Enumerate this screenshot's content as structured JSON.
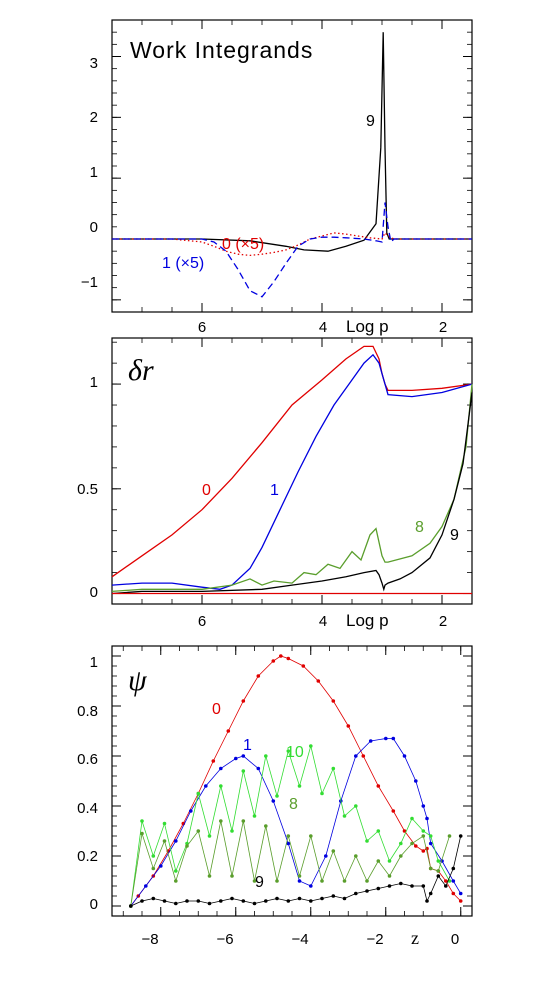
{
  "chart_data": [
    {
      "type": "line",
      "title": "Work Integrands",
      "xlabel": "Log p",
      "ylabel": "",
      "xlim": [
        7.5,
        1.5
      ],
      "ylim": [
        -1.2,
        3.6
      ],
      "x_ticks": [
        6,
        4,
        2
      ],
      "y_ticks": [
        -1,
        0,
        1,
        2,
        3
      ],
      "series": [
        {
          "name": "9",
          "color": "#000000",
          "style": "solid",
          "x": [
            7.5,
            6.0,
            5.2,
            4.6,
            4.3,
            3.9,
            3.6,
            3.3,
            3.1,
            3.02,
            2.98,
            2.95,
            2.92,
            2.88,
            2.8,
            2.5,
            2.0,
            1.5
          ],
          "y": [
            0,
            0,
            -0.03,
            -0.12,
            -0.18,
            -0.2,
            -0.12,
            -0.02,
            0.25,
            1.5,
            3.4,
            1.5,
            0.1,
            0,
            0,
            0,
            0,
            0
          ]
        },
        {
          "name": "0 (×5)",
          "color": "#e00000",
          "style": "dotted",
          "x": [
            7.5,
            6.5,
            6.0,
            5.8,
            5.6,
            5.4,
            5.2,
            5.0,
            4.8,
            4.6,
            4.4,
            4.2,
            4.0,
            3.8,
            3.6,
            3.4,
            3.2,
            3.0,
            2.95,
            2.9,
            2.8,
            2.5,
            1.5
          ],
          "y": [
            0,
            0,
            -0.05,
            -0.12,
            -0.2,
            -0.25,
            -0.27,
            -0.25,
            -0.22,
            -0.18,
            -0.1,
            0,
            0.05,
            0.1,
            0.08,
            0.05,
            0.02,
            0,
            0.1,
            0.05,
            0,
            0,
            0
          ]
        },
        {
          "name": "1 (×5)",
          "color": "#0000e0",
          "style": "dashed",
          "x": [
            7.5,
            6.0,
            5.8,
            5.6,
            5.4,
            5.2,
            5.0,
            4.8,
            4.6,
            4.4,
            4.2,
            4.0,
            3.8,
            3.6,
            3.3,
            3.1,
            3.0,
            2.95,
            2.9,
            2.85,
            2.8,
            2.5,
            1.5
          ],
          "y": [
            0,
            0,
            -0.05,
            -0.2,
            -0.5,
            -0.85,
            -0.95,
            -0.7,
            -0.4,
            -0.12,
            0,
            0.03,
            0.03,
            0.02,
            0,
            -0.03,
            -0.05,
            0.6,
            0.2,
            -0.05,
            0,
            0,
            0
          ]
        }
      ]
    },
    {
      "type": "line",
      "title": "δr",
      "xlabel": "Log p",
      "ylabel": "",
      "xlim": [
        7.5,
        1.5
      ],
      "ylim": [
        -0.05,
        1.22
      ],
      "x_ticks": [
        6,
        4,
        2
      ],
      "y_ticks": [
        0,
        0.5,
        1
      ],
      "series": [
        {
          "name": "0",
          "color": "#e00000",
          "style": "solid",
          "x": [
            7.5,
            7.0,
            6.5,
            6.0,
            5.5,
            5.0,
            4.5,
            4.0,
            3.6,
            3.3,
            3.15,
            3.05,
            3.0,
            2.95,
            2.9,
            2.5,
            2.0,
            1.5
          ],
          "y": [
            0.08,
            0.18,
            0.28,
            0.4,
            0.55,
            0.72,
            0.9,
            1.02,
            1.12,
            1.18,
            1.18,
            1.12,
            1.05,
            1.0,
            0.97,
            0.97,
            0.98,
            1.0
          ]
        },
        {
          "name": "1",
          "color": "#0000e0",
          "style": "solid",
          "x": [
            7.5,
            7.0,
            6.5,
            6.0,
            5.7,
            5.5,
            5.2,
            5.0,
            4.7,
            4.4,
            4.1,
            3.8,
            3.5,
            3.3,
            3.15,
            3.05,
            2.95,
            2.9,
            2.5,
            2.0,
            1.5
          ],
          "y": [
            0.04,
            0.05,
            0.05,
            0.03,
            0.02,
            0.04,
            0.12,
            0.22,
            0.4,
            0.58,
            0.75,
            0.9,
            1.02,
            1.1,
            1.14,
            1.1,
            1.0,
            0.95,
            0.94,
            0.96,
            1.0
          ]
        },
        {
          "name": "8",
          "color": "#5a9e2c",
          "style": "solid",
          "x": [
            7.5,
            7.0,
            6.5,
            6.0,
            5.5,
            5.2,
            5.0,
            4.8,
            4.5,
            4.3,
            4.1,
            3.9,
            3.7,
            3.5,
            3.35,
            3.2,
            3.1,
            3.0,
            2.95,
            2.9,
            2.5,
            2.2,
            2.0,
            1.8,
            1.6,
            1.5
          ],
          "y": [
            0.01,
            0.02,
            0.02,
            0.02,
            0.04,
            0.07,
            0.04,
            0.06,
            0.05,
            0.1,
            0.09,
            0.14,
            0.12,
            0.2,
            0.16,
            0.28,
            0.31,
            0.18,
            0.15,
            0.15,
            0.18,
            0.24,
            0.32,
            0.45,
            0.7,
            1.0
          ]
        },
        {
          "name": "9",
          "color": "#000000",
          "style": "solid",
          "x": [
            7.5,
            7.0,
            6.0,
            5.0,
            4.5,
            4.0,
            3.6,
            3.3,
            3.1,
            3.05,
            3.0,
            2.97,
            2.95,
            2.9,
            2.7,
            2.5,
            2.2,
            2.0,
            1.8,
            1.65,
            1.5
          ],
          "y": [
            0.0,
            0.01,
            0.01,
            0.02,
            0.04,
            0.06,
            0.08,
            0.1,
            0.11,
            0.09,
            0.05,
            0.02,
            0.04,
            0.05,
            0.07,
            0.1,
            0.17,
            0.28,
            0.45,
            0.62,
            0.96
          ]
        },
        {
          "name": "",
          "color": "#e00000",
          "style": "solid",
          "x": [
            7.5,
            1.5
          ],
          "y": [
            0.0,
            0.0
          ]
        }
      ]
    },
    {
      "type": "scatter",
      "title": "ψ",
      "xlabel": "z",
      "ylabel": "",
      "xlim": [
        -9.3,
        0.3
      ],
      "ylim": [
        -0.04,
        1.04
      ],
      "x_ticks": [
        -8,
        -6,
        -4,
        -2,
        0
      ],
      "y_ticks": [
        0,
        0.2,
        0.4,
        0.6,
        0.8,
        1
      ],
      "series": [
        {
          "name": "0",
          "color": "#e00000",
          "x": [
            -8.8,
            -8.6,
            -8.2,
            -7.8,
            -7.4,
            -7.0,
            -6.6,
            -6.2,
            -5.8,
            -5.4,
            -5.0,
            -4.8,
            -4.6,
            -4.2,
            -3.8,
            -3.4,
            -3.0,
            -2.6,
            -2.2,
            -1.8,
            -1.5,
            -1.2,
            -1.0,
            -0.9,
            -0.8,
            -0.6,
            -0.4,
            -0.2,
            0.0
          ],
          "y": [
            0.0,
            0.04,
            0.12,
            0.22,
            0.33,
            0.45,
            0.58,
            0.7,
            0.82,
            0.92,
            0.98,
            1.0,
            0.99,
            0.96,
            0.9,
            0.82,
            0.72,
            0.6,
            0.48,
            0.38,
            0.3,
            0.24,
            0.22,
            0.23,
            0.15,
            0.14,
            0.1,
            0.05,
            0.02
          ]
        },
        {
          "name": "1",
          "color": "#0000e0",
          "x": [
            -8.8,
            -8.4,
            -8.0,
            -7.6,
            -7.2,
            -6.8,
            -6.4,
            -6.0,
            -5.8,
            -5.4,
            -5.0,
            -4.6,
            -4.3,
            -4.0,
            -3.6,
            -3.2,
            -2.8,
            -2.4,
            -2.0,
            -1.8,
            -1.5,
            -1.2,
            -1.0,
            -0.9,
            -0.8,
            -0.5,
            -0.2,
            0.0
          ],
          "y": [
            0.0,
            0.08,
            0.16,
            0.26,
            0.38,
            0.48,
            0.55,
            0.59,
            0.6,
            0.55,
            0.42,
            0.25,
            0.1,
            0.08,
            0.2,
            0.42,
            0.6,
            0.66,
            0.67,
            0.67,
            0.6,
            0.5,
            0.4,
            0.35,
            0.25,
            0.18,
            0.1,
            0.05
          ]
        },
        {
          "name": "10",
          "color": "#33dd33",
          "x": [
            -8.8,
            -8.5,
            -8.2,
            -7.9,
            -7.6,
            -7.3,
            -7.0,
            -6.7,
            -6.4,
            -6.1,
            -5.8,
            -5.5,
            -5.2,
            -4.9,
            -4.6,
            -4.3,
            -4.0,
            -3.7,
            -3.4,
            -3.1,
            -2.8,
            -2.5,
            -2.2,
            -1.9,
            -1.6,
            -1.3,
            -1.0,
            -0.8,
            -0.6,
            -0.3
          ],
          "y": [
            0.0,
            0.34,
            0.2,
            0.33,
            0.14,
            0.25,
            0.45,
            0.28,
            0.48,
            0.3,
            0.54,
            0.36,
            0.6,
            0.44,
            0.62,
            0.48,
            0.64,
            0.45,
            0.55,
            0.36,
            0.4,
            0.26,
            0.3,
            0.18,
            0.25,
            0.35,
            0.3,
            0.28,
            0.18,
            0.1
          ]
        },
        {
          "name": "8",
          "color": "#5a9e2c",
          "x": [
            -8.8,
            -8.5,
            -8.2,
            -7.9,
            -7.6,
            -7.3,
            -7.0,
            -6.7,
            -6.4,
            -6.1,
            -5.8,
            -5.5,
            -5.2,
            -4.9,
            -4.6,
            -4.3,
            -4.0,
            -3.7,
            -3.4,
            -3.1,
            -2.8,
            -2.5,
            -2.2,
            -1.9,
            -1.6,
            -1.3,
            -1.0,
            -0.8,
            -0.6,
            -0.3
          ],
          "y": [
            0.0,
            0.29,
            0.15,
            0.26,
            0.1,
            0.24,
            0.3,
            0.12,
            0.34,
            0.12,
            0.34,
            0.1,
            0.32,
            0.1,
            0.28,
            0.12,
            0.28,
            0.1,
            0.22,
            0.1,
            0.2,
            0.1,
            0.18,
            0.12,
            0.2,
            0.25,
            0.28,
            0.15,
            0.14,
            0.28
          ]
        },
        {
          "name": "9",
          "color": "#000000",
          "x": [
            -8.8,
            -8.5,
            -8.2,
            -7.9,
            -7.6,
            -7.3,
            -7.0,
            -6.7,
            -6.4,
            -6.1,
            -5.8,
            -5.5,
            -5.2,
            -4.9,
            -4.6,
            -4.3,
            -4.0,
            -3.7,
            -3.4,
            -3.1,
            -2.8,
            -2.5,
            -2.2,
            -1.9,
            -1.6,
            -1.3,
            -1.0,
            -0.9,
            -0.8,
            -0.6,
            -0.4,
            -0.2,
            0.0
          ],
          "y": [
            0.0,
            0.02,
            0.03,
            0.02,
            0.01,
            0.02,
            0.02,
            0.01,
            0.02,
            0.03,
            0.02,
            0.01,
            0.02,
            0.03,
            0.02,
            0.03,
            0.02,
            0.03,
            0.04,
            0.03,
            0.05,
            0.06,
            0.07,
            0.08,
            0.09,
            0.08,
            0.08,
            0.02,
            0.05,
            0.12,
            0.08,
            0.15,
            0.28
          ]
        }
      ]
    }
  ],
  "labels": {
    "p1_title": "Work Integrands",
    "p1_xlabel": "Log p",
    "p1_s9": "9",
    "p1_s0": "0 (×5)",
    "p1_s1": "1 (×5)",
    "p2_title": "δr",
    "p2_xlabel": "Log p",
    "p2_s0": "0",
    "p2_s1": "1",
    "p2_s8": "8",
    "p2_s9": "9",
    "p3_title": "ψ",
    "p3_xlabel": "z",
    "p3_s0": "0",
    "p3_s1": "1",
    "p3_s10": "10",
    "p3_s8": "8",
    "p3_s9": "9"
  },
  "ticks": {
    "p1_y": [
      "3",
      "2",
      "1",
      "0",
      "−1"
    ],
    "p1_x": [
      "6",
      "4",
      "2"
    ],
    "p2_y": [
      "1",
      "0.5",
      "0"
    ],
    "p2_x": [
      "6",
      "4",
      "2"
    ],
    "p3_y": [
      "1",
      "0.8",
      "0.6",
      "0.4",
      "0.2",
      "0"
    ],
    "p3_x": [
      "−8",
      "−6",
      "−4",
      "−2",
      "0"
    ]
  },
  "colors": {
    "red": "#e00000",
    "blue": "#0000e0",
    "green": "#33dd33",
    "olive": "#5a9e2c",
    "black": "#000000"
  }
}
